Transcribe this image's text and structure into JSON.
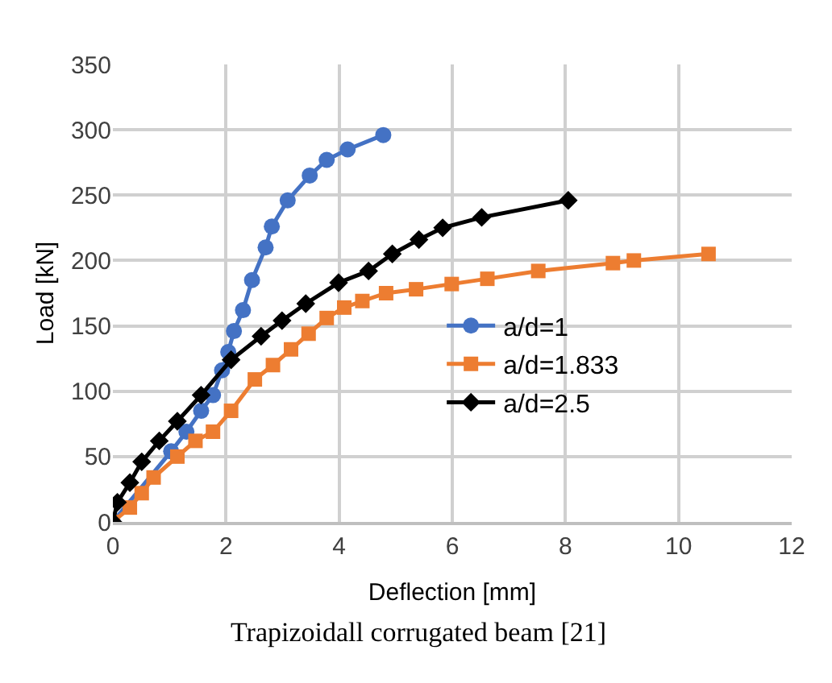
{
  "chart_data": {
    "type": "line",
    "xlabel": "Deflection [mm]",
    "ylabel": "Load [kN]",
    "annotations": [
      "Trapizoidall corrugated beam [21]"
    ],
    "xlim": [
      0,
      12
    ],
    "xticks": [
      0,
      2,
      4,
      6,
      8,
      10,
      12
    ],
    "ylim": [
      0,
      350
    ],
    "yticks": [
      0,
      50,
      100,
      150,
      200,
      250,
      300,
      350
    ],
    "grid": true,
    "legend": "right",
    "series": [
      {
        "name": "a/d=1",
        "color": "#4472c4",
        "marker": "circle",
        "x": [
          0,
          0.4,
          0.72,
          1.03,
          1.3,
          1.56,
          1.77,
          1.93,
          2.04,
          2.14,
          2.3,
          2.46,
          2.7,
          2.81,
          3.09,
          3.48,
          3.78,
          4.15,
          4.78
        ],
        "values": [
          0,
          null,
          null,
          54,
          69,
          85,
          97,
          116,
          130,
          146,
          162,
          185,
          210,
          226,
          246,
          265,
          277,
          285,
          296
        ]
      },
      {
        "name": "a/d=1.833",
        "color": "#ed7d31",
        "marker": "square",
        "x": [
          0,
          0.3,
          0.51,
          0.72,
          1.14,
          1.46,
          1.77,
          2.09,
          2.51,
          2.83,
          3.15,
          3.46,
          3.78,
          4.09,
          4.41,
          4.83,
          5.36,
          5.99,
          6.62,
          7.52,
          8.84,
          9.21,
          10.53
        ],
        "values": [
          0,
          11,
          22,
          34,
          50,
          62,
          69,
          85,
          109,
          120,
          132,
          144,
          156,
          164,
          169,
          175,
          178,
          182,
          186,
          192,
          198,
          200,
          205
        ]
      },
      {
        "name": "a/d=2.5",
        "color": "#000000",
        "marker": "diamond",
        "x": [
          0,
          0.08,
          0.3,
          0.51,
          0.82,
          1.14,
          1.56,
          2.09,
          2.62,
          2.99,
          3.41,
          3.99,
          4.52,
          4.94,
          5.41,
          5.83,
          6.52,
          8.05
        ],
        "values": [
          0,
          15,
          30,
          46,
          62,
          77,
          97,
          124,
          142,
          154,
          167,
          183,
          192,
          205,
          216,
          225,
          233,
          246
        ]
      }
    ]
  }
}
